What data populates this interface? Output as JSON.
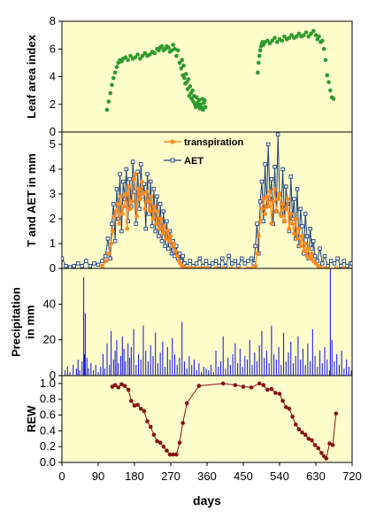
{
  "colors": {
    "panel_bg": "#ffffcc",
    "lai": "#2e9a2e",
    "transpiration": "#ff8a1e",
    "aet": "#1a3d7a",
    "precip": "#2020ee",
    "rew": "#8b1010"
  },
  "x_axis": {
    "label": "days",
    "ticks": [
      "0",
      "90",
      "180",
      "270",
      "360",
      "450",
      "540",
      "630",
      "720"
    ],
    "xlim": [
      0,
      720
    ]
  },
  "chart_data": [
    {
      "type": "scatter",
      "ylabel": "Leaf area index",
      "ylim": [
        0,
        8
      ],
      "yticks": [
        "0",
        "2",
        "4",
        "6",
        "8"
      ],
      "series": [
        {
          "x": [
            112,
            116,
            120,
            124,
            128,
            132,
            136,
            140,
            144,
            148,
            152,
            158,
            164,
            170,
            176,
            182,
            188,
            194,
            200,
            206,
            212,
            218,
            224,
            230,
            236,
            240,
            244,
            248,
            252,
            256,
            260,
            264,
            268,
            272,
            276,
            280,
            284,
            288,
            292,
            296,
            298,
            300,
            302,
            304,
            306,
            308,
            310,
            312,
            314,
            316,
            318,
            320,
            322,
            324,
            326,
            328,
            330,
            332,
            334,
            336,
            338,
            340,
            342,
            344,
            346,
            348,
            350,
            352,
            354,
            356,
            486,
            488,
            490,
            492,
            494,
            496,
            498,
            500,
            504,
            510,
            516,
            522,
            528,
            534,
            540,
            546,
            552,
            558,
            564,
            570,
            576,
            582,
            588,
            594,
            600,
            606,
            612,
            618,
            624,
            630,
            634,
            638,
            642,
            646,
            650,
            654,
            658,
            662,
            666,
            670,
            674
          ],
          "y": [
            1.6,
            2.2,
            2.8,
            3.4,
            3.9,
            4.3,
            4.7,
            5.0,
            5.2,
            5.1,
            5.3,
            5.4,
            5.2,
            5.5,
            5.3,
            5.4,
            5.6,
            5.3,
            5.5,
            5.7,
            5.5,
            5.6,
            5.8,
            5.7,
            6.0,
            5.9,
            6.1,
            6.2,
            5.9,
            6.0,
            6.2,
            6.1,
            5.8,
            5.9,
            6.3,
            6.0,
            5.5,
            5.9,
            5.0,
            4.6,
            5.2,
            4.1,
            4.8,
            3.9,
            3.5,
            4.2,
            3.6,
            3.1,
            3.8,
            2.6,
            3.3,
            2.8,
            2.4,
            3.0,
            2.2,
            2.6,
            2.0,
            1.8,
            2.5,
            2.1,
            1.9,
            2.3,
            1.7,
            2.0,
            1.8,
            2.4,
            1.6,
            2.1,
            2.3,
            1.8,
            4.3,
            5.0,
            5.5,
            5.9,
            6.2,
            6.4,
            6.5,
            6.3,
            6.5,
            6.6,
            6.4,
            6.6,
            6.8,
            6.5,
            6.7,
            6.6,
            6.9,
            6.7,
            6.8,
            7.0,
            6.8,
            6.9,
            7.1,
            6.9,
            7.0,
            7.2,
            6.9,
            7.1,
            7.3,
            7.0,
            6.7,
            6.9,
            6.5,
            6.6,
            6.0,
            5.2,
            4.1,
            3.6,
            3.0,
            2.5,
            2.4
          ]
        }
      ]
    },
    {
      "type": "line",
      "ylabel": "T and AET in mm",
      "ylim": [
        0,
        5.5
      ],
      "yticks": [
        "0",
        "1",
        "2",
        "3",
        "4",
        "5"
      ],
      "legend_position": "top-center",
      "series": [
        {
          "name": "transpiration",
          "x": [
            100,
            110,
            116,
            122,
            126,
            130,
            134,
            138,
            142,
            146,
            150,
            154,
            158,
            162,
            166,
            170,
            174,
            178,
            182,
            186,
            190,
            194,
            198,
            202,
            206,
            210,
            214,
            218,
            222,
            226,
            230,
            234,
            238,
            242,
            246,
            250,
            254,
            258,
            262,
            266,
            270,
            274,
            278,
            282,
            286,
            290,
            294,
            298,
            302,
            306,
            310,
            314,
            318,
            322,
            330,
            340,
            350,
            360,
            380,
            400,
            420,
            440,
            460,
            470,
            480,
            484,
            488,
            492,
            496,
            500,
            504,
            508,
            512,
            516,
            520,
            524,
            528,
            532,
            536,
            540,
            544,
            548,
            552,
            556,
            560,
            564,
            568,
            572,
            576,
            580,
            584,
            588,
            592,
            596,
            600,
            604,
            608,
            612,
            616,
            620,
            624,
            630,
            636,
            640,
            650,
            660,
            680,
            700,
            720
          ],
          "y": [
            0.1,
            0.3,
            0.6,
            1.0,
            1.5,
            2.1,
            2.3,
            2.6,
            1.8,
            2.9,
            2.2,
            2.5,
            3.0,
            1.6,
            3.3,
            2.4,
            2.7,
            3.6,
            3.8,
            2.1,
            3.2,
            2.8,
            3.5,
            3.0,
            2.4,
            3.1,
            2.7,
            2.3,
            2.9,
            2.0,
            2.5,
            1.8,
            2.3,
            1.6,
            2.0,
            1.4,
            1.7,
            1.2,
            1.5,
            1.1,
            1.3,
            0.9,
            1.0,
            0.7,
            0.5,
            0.3,
            0.2,
            0.1,
            0.05,
            0.02,
            0.0,
            0.0,
            0.0,
            0.0,
            0.0,
            0.0,
            0.0,
            0.0,
            0.0,
            0.0,
            0.0,
            0.0,
            0.0,
            0.0,
            0.1,
            0.6,
            1.3,
            1.9,
            2.4,
            2.8,
            2.2,
            2.9,
            2.5,
            3.1,
            1.8,
            2.7,
            3.2,
            2.3,
            2.8,
            3.0,
            2.1,
            2.6,
            1.9,
            2.4,
            2.8,
            1.6,
            2.2,
            1.8,
            1.4,
            2.0,
            1.2,
            1.6,
            0.9,
            1.3,
            0.7,
            1.0,
            0.5,
            0.8,
            0.4,
            0.6,
            0.3,
            0.2,
            0.1,
            0.05,
            0.0,
            0.0,
            0.0,
            0.0,
            0.0
          ]
        },
        {
          "name": "AET",
          "x": [
            0,
            10,
            20,
            30,
            40,
            50,
            60,
            70,
            80,
            90,
            100,
            108,
            114,
            120,
            124,
            128,
            132,
            136,
            140,
            144,
            148,
            152,
            156,
            160,
            164,
            168,
            172,
            176,
            180,
            184,
            188,
            192,
            196,
            200,
            204,
            208,
            212,
            216,
            220,
            224,
            228,
            232,
            236,
            240,
            244,
            248,
            252,
            256,
            260,
            264,
            268,
            272,
            276,
            280,
            284,
            288,
            292,
            296,
            300,
            304,
            310,
            318,
            326,
            334,
            342,
            350,
            358,
            366,
            374,
            382,
            390,
            398,
            406,
            414,
            422,
            430,
            438,
            446,
            454,
            462,
            470,
            476,
            480,
            484,
            488,
            492,
            496,
            500,
            504,
            508,
            512,
            516,
            520,
            524,
            528,
            532,
            536,
            540,
            544,
            548,
            552,
            556,
            560,
            564,
            568,
            572,
            576,
            580,
            584,
            588,
            592,
            596,
            600,
            604,
            608,
            612,
            616,
            620,
            624,
            628,
            634,
            640,
            646,
            652,
            660,
            668,
            676,
            684,
            692,
            700,
            708,
            716,
            720
          ],
          "y": [
            0.4,
            0.1,
            0.05,
            0.1,
            0.2,
            0.1,
            0.3,
            0.1,
            0.2,
            0.15,
            0.3,
            0.5,
            1.2,
            0.4,
            1.8,
            2.6,
            1.1,
            3.2,
            2.0,
            3.8,
            1.5,
            3.5,
            2.8,
            4.0,
            1.9,
            3.6,
            2.5,
            4.3,
            3.1,
            1.8,
            3.9,
            2.4,
            4.2,
            2.9,
            3.4,
            1.6,
            3.8,
            2.2,
            3.5,
            1.7,
            3.2,
            1.5,
            2.9,
            1.3,
            2.6,
            1.1,
            2.3,
            0.9,
            1.9,
            0.8,
            1.5,
            0.6,
            1.1,
            0.5,
            0.9,
            0.4,
            0.6,
            0.3,
            0.5,
            0.2,
            0.1,
            0.3,
            0.1,
            0.2,
            0.4,
            0.1,
            0.3,
            0.1,
            0.2,
            0.3,
            0.1,
            0.4,
            0.1,
            0.5,
            0.2,
            0.3,
            0.1,
            0.4,
            0.2,
            0.3,
            0.4,
            0.2,
            0.9,
            1.8,
            0.6,
            2.7,
            3.5,
            1.9,
            4.2,
            2.5,
            5.0,
            2.8,
            3.6,
            1.8,
            4.1,
            2.3,
            5.4,
            3.0,
            2.2,
            4.0,
            1.9,
            3.3,
            2.6,
            1.5,
            3.7,
            2.0,
            2.8,
            1.2,
            3.2,
            0.9,
            2.4,
            1.7,
            0.6,
            2.2,
            1.3,
            0.4,
            1.6,
            0.8,
            1.1,
            0.5,
            0.3,
            0.8,
            0.2,
            0.5,
            0.1,
            0.3,
            0.2,
            0.4,
            0.1,
            0.3,
            0.1,
            0.2,
            0.2
          ]
        }
      ]
    },
    {
      "type": "bar",
      "ylabel": "Precipitation in mm",
      "ylim": [
        0,
        60
      ],
      "yticks": [
        "0",
        "20",
        "40"
      ],
      "series": [
        {
          "x": [
            8,
            14,
            20,
            28,
            36,
            40,
            44,
            50,
            54,
            56,
            58,
            62,
            66,
            72,
            78,
            84,
            90,
            96,
            102,
            106,
            112,
            118,
            122,
            128,
            132,
            136,
            140,
            146,
            150,
            154,
            158,
            164,
            168,
            172,
            178,
            184,
            190,
            196,
            202,
            208,
            214,
            220,
            226,
            232,
            238,
            244,
            250,
            256,
            262,
            268,
            274,
            280,
            286,
            292,
            298,
            304,
            310,
            316,
            322,
            328,
            334,
            340,
            346,
            352,
            358,
            364,
            370,
            376,
            382,
            388,
            394,
            400,
            406,
            412,
            418,
            424,
            430,
            436,
            442,
            448,
            454,
            460,
            466,
            472,
            478,
            484,
            490,
            496,
            502,
            508,
            514,
            520,
            526,
            532,
            538,
            544,
            550,
            556,
            562,
            568,
            574,
            580,
            586,
            592,
            598,
            604,
            610,
            616,
            622,
            628,
            634,
            640,
            646,
            652,
            658,
            664,
            666,
            670,
            676,
            682,
            688,
            694,
            700,
            706,
            712,
            718
          ],
          "y": [
            3,
            5,
            2,
            6,
            4,
            9,
            3,
            8,
            55,
            12,
            35,
            10,
            4,
            7,
            3,
            6,
            2,
            5,
            12,
            4,
            18,
            6,
            25,
            9,
            14,
            20,
            7,
            11,
            22,
            15,
            8,
            18,
            10,
            16,
            26,
            6,
            12,
            9,
            28,
            14,
            8,
            17,
            11,
            24,
            7,
            13,
            19,
            5,
            16,
            9,
            21,
            12,
            6,
            10,
            30,
            8,
            4,
            11,
            6,
            9,
            3,
            7,
            2,
            5,
            4,
            3,
            6,
            2,
            14,
            5,
            8,
            22,
            4,
            10,
            6,
            12,
            18,
            7,
            15,
            5,
            11,
            9,
            20,
            6,
            13,
            8,
            17,
            25,
            10,
            14,
            7,
            28,
            12,
            9,
            16,
            6,
            24,
            8,
            13,
            19,
            7,
            11,
            22,
            9,
            15,
            6,
            18,
            8,
            26,
            11,
            5,
            14,
            7,
            16,
            9,
            3,
            60,
            20,
            8,
            12,
            6,
            14,
            4,
            9,
            5,
            3
          ]
        }
      ]
    },
    {
      "type": "line",
      "ylabel": "REW",
      "ylim": [
        0,
        1.1
      ],
      "yticks": [
        "0.0",
        "0.2",
        "0.4",
        "0.6",
        "0.8",
        "1.0"
      ],
      "series": [
        {
          "x": [
            125,
            132,
            140,
            148,
            156,
            165,
            172,
            180,
            188,
            196,
            204,
            212,
            220,
            228,
            236,
            244,
            252,
            260,
            268,
            276,
            284,
            292,
            300,
            310,
            340,
            400,
            430,
            450,
            470,
            490,
            500,
            510,
            520,
            530,
            540,
            548,
            556,
            564,
            572,
            580,
            588,
            596,
            604,
            612,
            620,
            628,
            636,
            644,
            650,
            656,
            664,
            672,
            680
          ],
          "y": [
            0.96,
            0.98,
            0.95,
            0.99,
            0.97,
            0.92,
            0.78,
            0.72,
            0.73,
            0.68,
            0.65,
            0.52,
            0.45,
            0.35,
            0.27,
            0.25,
            0.2,
            0.15,
            0.1,
            0.1,
            0.1,
            0.25,
            0.5,
            0.75,
            0.97,
            1.0,
            0.98,
            0.96,
            0.95,
            1.0,
            0.98,
            0.92,
            0.93,
            0.88,
            0.87,
            0.78,
            0.7,
            0.68,
            0.58,
            0.48,
            0.42,
            0.38,
            0.35,
            0.3,
            0.28,
            0.22,
            0.18,
            0.12,
            0.08,
            0.05,
            0.24,
            0.22,
            0.62
          ]
        }
      ]
    }
  ]
}
